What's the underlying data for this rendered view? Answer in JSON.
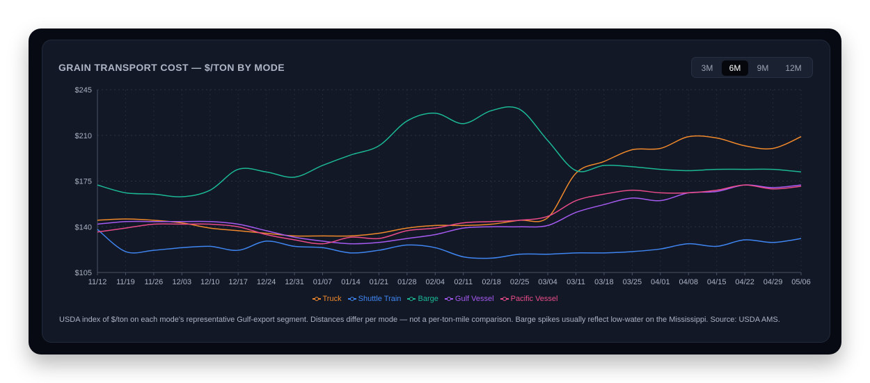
{
  "title": "GRAIN TRANSPORT COST — $/TON BY MODE",
  "range_buttons": [
    {
      "label": "3M",
      "active": false
    },
    {
      "label": "6M",
      "active": true
    },
    {
      "label": "9M",
      "active": false
    },
    {
      "label": "12M",
      "active": false
    }
  ],
  "footnote": "USDA index of $/ton on each mode's representative Gulf-export segment. Distances differ per mode — not a per-ton-mile comparison. Barge spikes usually reflect low-water on the Mississippi. Source: USDA AMS.",
  "chart_data": {
    "type": "line",
    "x": [
      "11/12",
      "11/19",
      "11/26",
      "12/03",
      "12/10",
      "12/17",
      "12/24",
      "12/31",
      "01/07",
      "01/14",
      "01/21",
      "01/28",
      "02/04",
      "02/11",
      "02/18",
      "02/25",
      "03/04",
      "03/11",
      "03/18",
      "03/25",
      "04/01",
      "04/08",
      "04/15",
      "04/22",
      "04/29",
      "05/06"
    ],
    "y_ticks": [
      "$105",
      "$140",
      "$175",
      "$210",
      "$245"
    ],
    "ylim": [
      105,
      245
    ],
    "grid": true,
    "legend_position": "bottom",
    "series": [
      {
        "name": "Truck",
        "color": "#f0892b",
        "values": [
          145,
          146,
          145,
          143,
          139,
          137,
          135,
          133,
          133,
          133,
          135,
          139,
          141,
          141,
          142,
          145,
          147,
          181,
          190,
          199,
          200,
          209,
          208,
          202,
          200,
          209
        ]
      },
      {
        "name": "Shuttle Train",
        "color": "#3f86f2",
        "values": [
          138,
          121,
          122,
          124,
          125,
          122,
          129,
          125,
          124,
          120,
          122,
          126,
          124,
          117,
          116,
          119,
          119,
          120,
          120,
          121,
          123,
          127,
          125,
          130,
          128,
          131
        ]
      },
      {
        "name": "Barge",
        "color": "#1cb896",
        "values": [
          172,
          166,
          165,
          163,
          168,
          184,
          182,
          178,
          187,
          195,
          202,
          221,
          227,
          219,
          229,
          230,
          206,
          183,
          187,
          186,
          184,
          183,
          184,
          184,
          184,
          182
        ]
      },
      {
        "name": "Gulf Vessel",
        "color": "#a55af0",
        "values": [
          142,
          144,
          144,
          144,
          144,
          142,
          137,
          132,
          129,
          127,
          128,
          131,
          134,
          139,
          140,
          140,
          141,
          151,
          157,
          162,
          160,
          166,
          167,
          172,
          170,
          172
        ]
      },
      {
        "name": "Pacific Vessel",
        "color": "#ea4c8a",
        "values": [
          136,
          139,
          142,
          142,
          142,
          140,
          134,
          130,
          127,
          132,
          131,
          137,
          139,
          143,
          144,
          145,
          148,
          160,
          165,
          168,
          166,
          166,
          168,
          172,
          169,
          171
        ]
      }
    ]
  }
}
